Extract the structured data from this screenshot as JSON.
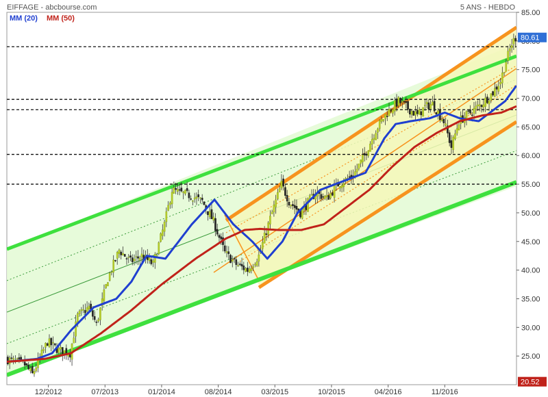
{
  "header": {
    "source": "EIFFAGE - abcbourse.com",
    "period": "5 ANS - HEBDO"
  },
  "legend": {
    "ma20": "MM (20)",
    "ma50": "MM (50)"
  },
  "colors": {
    "ma20": "#1f3fd0",
    "ma50": "#c0221a",
    "candle_up": "#b8cf2a",
    "candle_down": "#2a2a2a",
    "green_channel_line": "#3ee03e",
    "green_channel_fill": "#e4fbd6",
    "orange_channel_line": "#f7931e",
    "orange_channel_fill": "#f4f7b8",
    "last_tag": "#2f6fd6",
    "min_tag": "#c0221a"
  },
  "price_tags": {
    "last": "80.61",
    "min": "20.52"
  },
  "chart_data": {
    "type": "candlestick",
    "title": "EIFFAGE",
    "ylim": [
      20,
      85
    ],
    "yticks": [
      {
        "value": 85,
        "label": "85.00"
      },
      {
        "value": 80,
        "label": "80.00"
      },
      {
        "value": 75,
        "label": "75.00"
      },
      {
        "value": 70,
        "label": "70.00"
      },
      {
        "value": 65,
        "label": "65.00"
      },
      {
        "value": 60,
        "label": "60.00"
      },
      {
        "value": 55,
        "label": "55.00"
      },
      {
        "value": 50,
        "label": "50.00"
      },
      {
        "value": 45,
        "label": "45.00"
      },
      {
        "value": 40,
        "label": "40.00"
      },
      {
        "value": 35,
        "label": "35.00"
      },
      {
        "value": 30,
        "label": "30.00"
      },
      {
        "value": 25,
        "label": "25.00"
      }
    ],
    "xticks": [
      {
        "week": 22,
        "label": "12/2012"
      },
      {
        "week": 52,
        "label": "07/2013"
      },
      {
        "week": 82,
        "label": "01/2014"
      },
      {
        "week": 112,
        "label": "08/2014"
      },
      {
        "week": 142,
        "label": "03/2015"
      },
      {
        "week": 172,
        "label": "10/2015"
      },
      {
        "week": 202,
        "label": "04/2016"
      },
      {
        "week": 232,
        "label": "11/2016"
      }
    ],
    "weeks": 270,
    "horizontal_levels": [
      79.0,
      69.8,
      68.0,
      60.2,
      55.0
    ],
    "close_path": [
      [
        0,
        24.5
      ],
      [
        10,
        23.5
      ],
      [
        14,
        21.8
      ],
      [
        22,
        27.5
      ],
      [
        28,
        26.0
      ],
      [
        34,
        25.5
      ],
      [
        38,
        32.0
      ],
      [
        44,
        33.5
      ],
      [
        48,
        30.5
      ],
      [
        54,
        38.5
      ],
      [
        60,
        43.5
      ],
      [
        66,
        41.5
      ],
      [
        72,
        42.5
      ],
      [
        78,
        41.0
      ],
      [
        84,
        48.0
      ],
      [
        88,
        54.0
      ],
      [
        92,
        53.5
      ],
      [
        98,
        53.0
      ],
      [
        104,
        52.0
      ],
      [
        110,
        48.5
      ],
      [
        116,
        43.0
      ],
      [
        122,
        41.0
      ],
      [
        128,
        40.0
      ],
      [
        134,
        42.5
      ],
      [
        140,
        49.0
      ],
      [
        146,
        55.0
      ],
      [
        150,
        52.0
      ],
      [
        156,
        50.0
      ],
      [
        164,
        53.5
      ],
      [
        170,
        52.5
      ],
      [
        176,
        55.0
      ],
      [
        184,
        56.5
      ],
      [
        190,
        60.0
      ],
      [
        196,
        64.5
      ],
      [
        202,
        67.5
      ],
      [
        208,
        69.5
      ],
      [
        214,
        68.0
      ],
      [
        218,
        67.0
      ],
      [
        222,
        68.5
      ],
      [
        226,
        69.0
      ],
      [
        232,
        66.0
      ],
      [
        236,
        61.5
      ],
      [
        240,
        66.0
      ],
      [
        246,
        67.5
      ],
      [
        252,
        69.0
      ],
      [
        258,
        71.0
      ],
      [
        262,
        73.0
      ],
      [
        265,
        76.5
      ],
      [
        268,
        79.5
      ],
      [
        270,
        80.61
      ]
    ],
    "series": [
      {
        "name": "MM (20)",
        "values": [
          [
            0,
            24.0
          ],
          [
            16,
            24.5
          ],
          [
            24,
            25.5
          ],
          [
            34,
            29.5
          ],
          [
            46,
            33.5
          ],
          [
            58,
            35.0
          ],
          [
            66,
            38.0
          ],
          [
            74,
            42.5
          ],
          [
            84,
            42.0
          ],
          [
            98,
            48.0
          ],
          [
            110,
            52.3
          ],
          [
            120,
            48.0
          ],
          [
            130,
            45.0
          ],
          [
            138,
            42.0
          ],
          [
            146,
            45.0
          ],
          [
            154,
            50.0
          ],
          [
            166,
            54.0
          ],
          [
            178,
            55.5
          ],
          [
            190,
            57.0
          ],
          [
            200,
            63.0
          ],
          [
            206,
            65.5
          ],
          [
            214,
            66.0
          ],
          [
            224,
            66.5
          ],
          [
            232,
            67.5
          ],
          [
            240,
            66.5
          ],
          [
            250,
            66.0
          ],
          [
            258,
            68.0
          ],
          [
            264,
            69.5
          ],
          [
            270,
            72.2
          ]
        ]
      },
      {
        "name": "MM (50)",
        "values": [
          [
            0,
            24.0
          ],
          [
            20,
            24.5
          ],
          [
            34,
            25.5
          ],
          [
            50,
            29.0
          ],
          [
            66,
            33.0
          ],
          [
            82,
            37.5
          ],
          [
            100,
            42.0
          ],
          [
            116,
            45.5
          ],
          [
            126,
            47.0
          ],
          [
            134,
            47.2
          ],
          [
            144,
            47.0
          ],
          [
            156,
            47.0
          ],
          [
            168,
            48.0
          ],
          [
            180,
            51.0
          ],
          [
            192,
            54.0
          ],
          [
            204,
            58.0
          ],
          [
            216,
            61.5
          ],
          [
            228,
            64.0
          ],
          [
            240,
            66.0
          ],
          [
            252,
            67.0
          ],
          [
            262,
            67.5
          ],
          [
            270,
            68.6
          ]
        ]
      }
    ]
  }
}
